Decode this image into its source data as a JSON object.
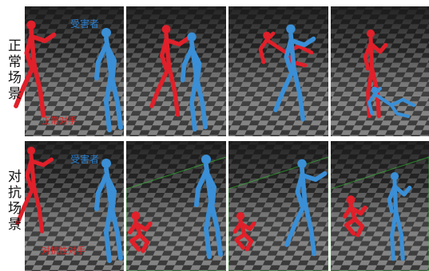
{
  "rows": [
    {
      "label": "正常场景",
      "victim_label": "受害者",
      "opponent_label": "正常对手"
    },
    {
      "label": "对抗场景",
      "victim_label": "受害者",
      "opponent_label": "对抗性对手"
    }
  ]
}
